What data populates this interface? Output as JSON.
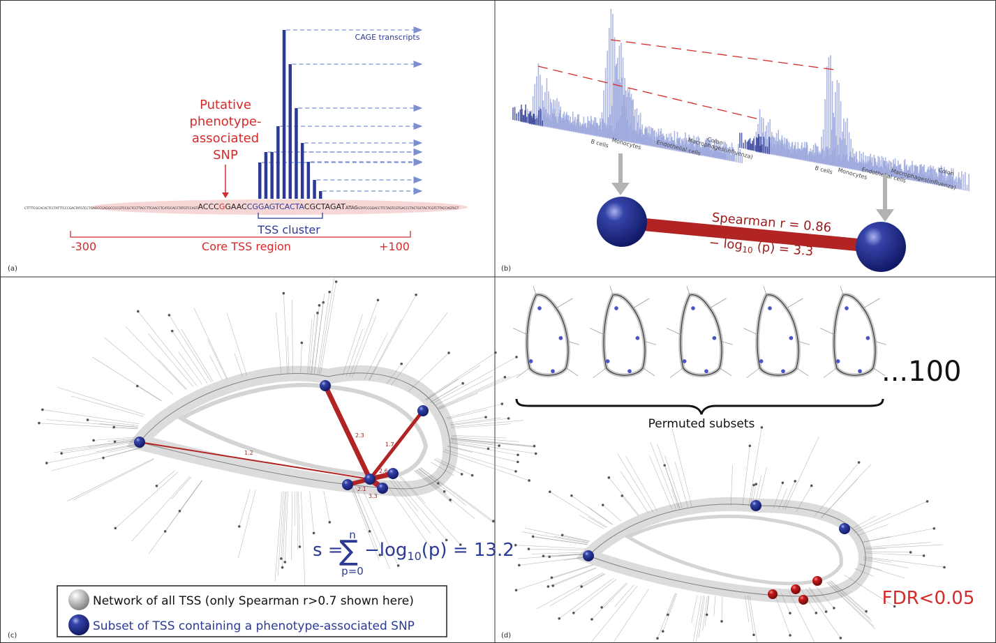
{
  "panels": {
    "a": {
      "label": "(a)",
      "snp_label": [
        "Putative",
        "phenotype-",
        "associated",
        "SNP"
      ],
      "cage_label": "CAGE transcripts",
      "sequence": [
        "CTTTTCGCACACTCCTATTTCCCGACTATGTCCTGAGCCGAGGCCCCGTCCGCTCCTTACCTTCAACCTCATGCACCTATGTCCAGT",
        "ACCC",
        "G",
        "GAAC",
        "CGGAGTCACTA",
        "CGCTAGAT",
        "ATAG",
        "GTATCCGGACCTTCTAGTCGTGACCCTACTGCTACTCGTCTTACCAGTACT"
      ],
      "tss_cluster": "TSS cluster",
      "core_start": "-300",
      "core_region": "Core TSS region",
      "core_end": "+100"
    },
    "b": {
      "label": "(b)",
      "tissues_left": [
        "B cells",
        "Monocytes",
        "Endothelial cells",
        "Macrophages(influenza)",
        "Colon"
      ],
      "tissues_right": [
        "B cells",
        "Monocytes",
        "Endothelial cells",
        "Macrophages(influenza)",
        "Colon"
      ],
      "correlation": "Spearman r = 0.86",
      "pvalue": [
        "− log",
        "10",
        " (p) = 3.3"
      ]
    },
    "c": {
      "label": "(c)",
      "edge_labels": [
        "1.2",
        "2.3",
        "1.7",
        "2.6",
        "2.1",
        "3.3"
      ],
      "formula": [
        "s =",
        "∑",
        "n",
        "p=0",
        "−log",
        "10",
        "(p) = 13.2"
      ],
      "legend": [
        "Network of all TSS (only Spearman r>0.7 shown here)",
        "Subset of TSS containing a phenotype-associated SNP"
      ]
    },
    "d": {
      "label": "(d)",
      "count": "...100",
      "permuted": "Permuted subsets",
      "fdr": "FDR<0.05"
    }
  }
}
